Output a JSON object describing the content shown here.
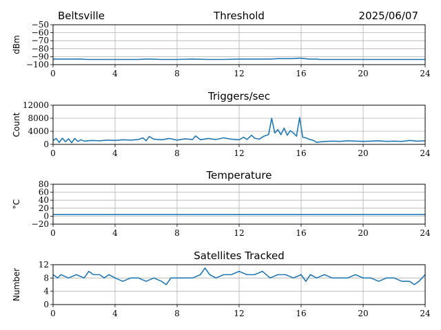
{
  "header": {
    "station": "Beltsville",
    "date": "2025/06/07"
  },
  "colors": {
    "series": "#1f77b4",
    "grid": "#b0b0b0",
    "axis": "#000000"
  },
  "chart_data": [
    {
      "id": "threshold",
      "type": "line",
      "title": "Threshold",
      "ylabel": "dBm",
      "xlim": [
        0,
        24
      ],
      "ylim": [
        -100,
        -50
      ],
      "xticks": [
        0,
        4,
        8,
        12,
        16,
        20,
        24
      ],
      "yticks": [
        -100,
        -90,
        -80,
        -70,
        -60,
        -50
      ],
      "ytick_labels": [
        "−100",
        "−90",
        "−80",
        "−70",
        "−60",
        "−50"
      ],
      "grid": true,
      "series": [
        {
          "x": [
            0,
            0.5,
            1,
            1.5,
            1.8,
            2.2,
            3,
            4,
            5,
            5.5,
            6,
            6.3,
            7,
            8,
            9,
            10,
            11,
            12,
            12.5,
            13,
            13.5,
            14,
            14.5,
            15,
            15.5,
            15.8,
            16,
            16.5,
            17,
            17.2,
            18,
            19,
            20,
            21,
            22,
            23,
            24
          ],
          "y": [
            -93,
            -93,
            -93,
            -93,
            -93,
            -93.5,
            -93.5,
            -93.5,
            -93.5,
            -93.5,
            -93,
            -93,
            -93.5,
            -93.5,
            -93,
            -93.5,
            -93.5,
            -93,
            -93,
            -93,
            -93,
            -93,
            -92.5,
            -92.5,
            -92.5,
            -92,
            -92,
            -93,
            -93,
            -93.5,
            -93.5,
            -93.5,
            -93.5,
            -93.5,
            -93.5,
            -93.5,
            -93.5
          ]
        }
      ]
    },
    {
      "id": "triggers",
      "type": "line",
      "title": "Triggers/sec",
      "ylabel": "Count",
      "xlim": [
        0,
        24
      ],
      "ylim": [
        0,
        12000
      ],
      "xticks": [
        0,
        4,
        8,
        12,
        16,
        20,
        24
      ],
      "yticks": [
        0,
        4000,
        8000,
        12000
      ],
      "ytick_labels": [
        "0",
        "4000",
        "8000",
        "12000"
      ],
      "grid": true,
      "series": [
        {
          "x": [
            0,
            0.2,
            0.4,
            0.6,
            0.8,
            1.0,
            1.2,
            1.4,
            1.6,
            1.8,
            2.0,
            2.5,
            3.0,
            3.5,
            4.0,
            4.5,
            5.0,
            5.5,
            5.8,
            6.0,
            6.2,
            6.5,
            7.0,
            7.5,
            8.0,
            8.5,
            9.0,
            9.2,
            9.5,
            10.0,
            10.5,
            11.0,
            11.5,
            12.0,
            12.3,
            12.5,
            12.8,
            13.0,
            13.3,
            13.6,
            13.9,
            14.1,
            14.3,
            14.5,
            14.7,
            14.9,
            15.1,
            15.3,
            15.5,
            15.7,
            15.9,
            16.1,
            16.3,
            16.5,
            16.8,
            17.0,
            17.3,
            17.6,
            18.0,
            18.5,
            19.0,
            19.5,
            20.0,
            20.5,
            21.0,
            21.5,
            22.0,
            22.5,
            23.0,
            23.5,
            24.0
          ],
          "y": [
            1200,
            1800,
            600,
            1900,
            800,
            1700,
            500,
            1800,
            900,
            1400,
            1000,
            1200,
            1100,
            1300,
            1200,
            1400,
            1300,
            1500,
            2000,
            1100,
            2400,
            1600,
            1400,
            1800,
            1300,
            1700,
            1500,
            2600,
            1400,
            1800,
            1500,
            2000,
            1600,
            1400,
            2200,
            1500,
            2800,
            1900,
            1600,
            2500,
            3000,
            8000,
            3500,
            4500,
            3000,
            5000,
            2800,
            4200,
            3500,
            2500,
            8200,
            2200,
            2000,
            1600,
            1200,
            600,
            800,
            900,
            1000,
            900,
            1100,
            1000,
            900,
            1000,
            1100,
            900,
            1000,
            900,
            1200,
            1000,
            1100
          ]
        }
      ]
    },
    {
      "id": "temperature",
      "type": "line",
      "title": "Temperature",
      "ylabel": "°C",
      "xlim": [
        0,
        24
      ],
      "ylim": [
        -20,
        80
      ],
      "xticks": [
        0,
        4,
        8,
        12,
        16,
        20,
        24
      ],
      "yticks": [
        -20,
        0,
        20,
        40,
        60,
        80
      ],
      "ytick_labels": [
        "−20",
        "0",
        "20",
        "40",
        "60",
        "80"
      ],
      "grid": true,
      "series": [
        {
          "x": [
            0,
            24
          ],
          "y": [
            4,
            4
          ]
        }
      ]
    },
    {
      "id": "satellites",
      "type": "line",
      "title": "Satellites Tracked",
      "ylabel": "Number",
      "xlim": [
        0,
        24
      ],
      "ylim": [
        0,
        12
      ],
      "xticks": [
        0,
        4,
        8,
        12,
        16,
        20,
        24
      ],
      "yticks": [
        0,
        4,
        8,
        12
      ],
      "ytick_labels": [
        "0",
        "4",
        "8",
        "12"
      ],
      "grid": true,
      "series": [
        {
          "x": [
            0,
            0.3,
            0.5,
            1.0,
            1.5,
            2.0,
            2.3,
            2.6,
            3.0,
            3.3,
            3.6,
            4.0,
            4.5,
            5.0,
            5.5,
            6.0,
            6.5,
            7.0,
            7.3,
            7.6,
            8.0,
            8.5,
            9.0,
            9.5,
            9.8,
            10.1,
            10.5,
            11.0,
            11.5,
            12.0,
            12.5,
            13.0,
            13.5,
            14.0,
            14.5,
            15.0,
            15.5,
            16.0,
            16.3,
            16.6,
            17.0,
            17.5,
            18.0,
            18.5,
            19.0,
            19.5,
            20.0,
            20.5,
            21.0,
            21.5,
            22.0,
            22.5,
            23.0,
            23.3,
            23.6,
            24.0
          ],
          "y": [
            9,
            8,
            9,
            8,
            9,
            8,
            10,
            9,
            9,
            8,
            9,
            8,
            7,
            8,
            8,
            7,
            8,
            7,
            6,
            8,
            8,
            8,
            8,
            9,
            11,
            9,
            8,
            9,
            9,
            10,
            9,
            9,
            10,
            8,
            9,
            9,
            8,
            9,
            7,
            9,
            8,
            9,
            8,
            8,
            8,
            9,
            8,
            8,
            7,
            8,
            8,
            7,
            7,
            6,
            7,
            9
          ]
        }
      ]
    }
  ]
}
